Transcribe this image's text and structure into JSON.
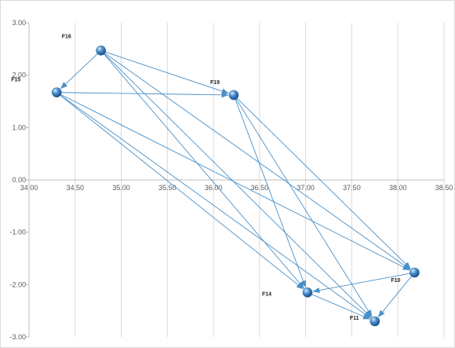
{
  "chart_data": {
    "type": "scatter",
    "title": "",
    "xlabel": "",
    "ylabel": "",
    "xlim": [
      34.0,
      38.5
    ],
    "ylim": [
      -3.0,
      3.0
    ],
    "x_ticks": [
      "34.00",
      "34.50",
      "35.00",
      "35.50",
      "36.00",
      "36.50",
      "37.00",
      "37.50",
      "38.00",
      "38.50"
    ],
    "y_ticks": [
      "3.00",
      "2.00",
      "1.00",
      "0.00",
      "-1.00",
      "-2.00",
      "-3.00"
    ],
    "grid": "vertical",
    "colors": {
      "arrow": "#4a90c8",
      "point": "#2e6aa6",
      "point_highlight": "#a8cdef",
      "grid": "#d9d9d9",
      "axis": "#bfbfbf"
    },
    "points": [
      {
        "label": "F16",
        "x": 34.78,
        "y": 2.47
      },
      {
        "label": "F15",
        "x": 34.3,
        "y": 1.67
      },
      {
        "label": "F19",
        "x": 36.22,
        "y": 1.62
      },
      {
        "label": "F10",
        "x": 38.18,
        "y": -1.77
      },
      {
        "label": "F14",
        "x": 37.02,
        "y": -2.15
      },
      {
        "label": "F11",
        "x": 37.75,
        "y": -2.7
      }
    ],
    "edges": [
      {
        "from": "F16",
        "to": "F15"
      },
      {
        "from": "F16",
        "to": "F19"
      },
      {
        "from": "F16",
        "to": "F14"
      },
      {
        "from": "F16",
        "to": "F11"
      },
      {
        "from": "F16",
        "to": "F10"
      },
      {
        "from": "F15",
        "to": "F19"
      },
      {
        "from": "F15",
        "to": "F14"
      },
      {
        "from": "F15",
        "to": "F10"
      },
      {
        "from": "F15",
        "to": "F11"
      },
      {
        "from": "F19",
        "to": "F14"
      },
      {
        "from": "F19",
        "to": "F11"
      },
      {
        "from": "F19",
        "to": "F10"
      },
      {
        "from": "F10",
        "to": "F14"
      },
      {
        "from": "F10",
        "to": "F11"
      },
      {
        "from": "F14",
        "to": "F11"
      }
    ]
  }
}
